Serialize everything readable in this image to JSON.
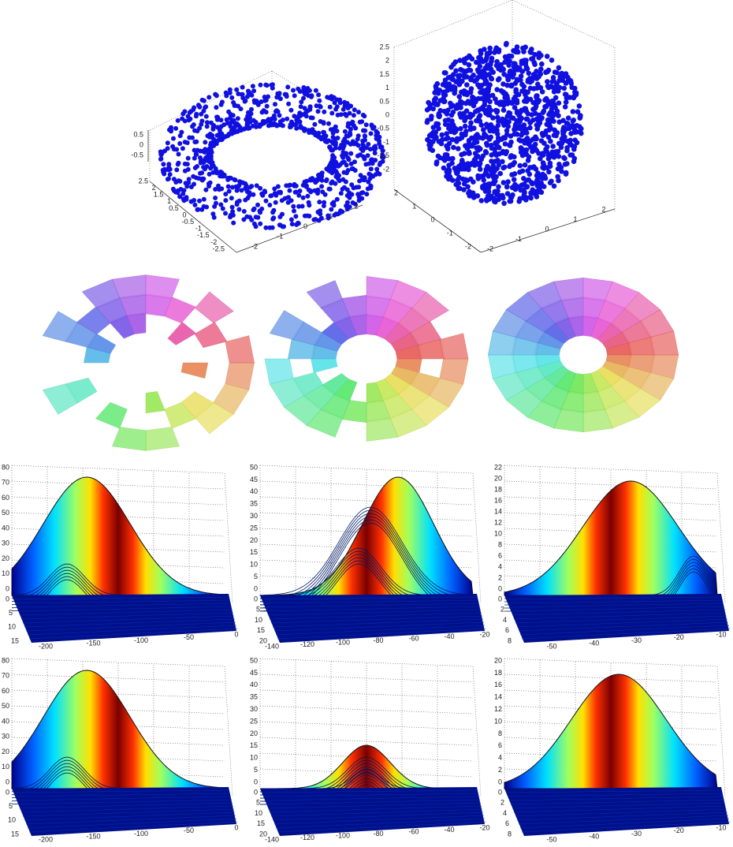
{
  "scatter_panels": [
    {
      "z_ticks": [
        0.5,
        0,
        -0.5
      ],
      "y_ticks": [
        2.5,
        2,
        1.5,
        1,
        0.5,
        0,
        -0.5,
        -1,
        -1.5,
        -2,
        -2.5
      ],
      "x_ticks": [
        -2,
        -1,
        0,
        1,
        2
      ]
    },
    {
      "z_ticks": [
        2.5,
        2,
        1.5,
        1,
        0.5,
        0,
        -0.5,
        -1,
        -1.5,
        -2
      ],
      "y_ticks": [
        2,
        1,
        0,
        -1,
        -2
      ],
      "x_ticks": [
        -2,
        -1,
        0,
        1,
        2
      ]
    }
  ],
  "surface_panels": [
    {
      "z_ticks": [
        0,
        10,
        20,
        30,
        40,
        50,
        60,
        70,
        80
      ],
      "depth_ticks": [
        0,
        5,
        10,
        15
      ],
      "x_ticks": [
        -200,
        -150,
        -100,
        -50,
        0
      ]
    },
    {
      "z_ticks": [
        0,
        5,
        10,
        15,
        20,
        25,
        30,
        35,
        40,
        45,
        50
      ],
      "depth_ticks": [
        0,
        5,
        10,
        15,
        20
      ],
      "x_ticks": [
        -140,
        -120,
        -100,
        -80,
        -60,
        -40,
        -20
      ]
    },
    {
      "z_ticks": [
        0,
        2,
        4,
        6,
        8,
        10,
        12,
        14,
        16,
        18,
        20,
        22
      ],
      "depth_ticks": [
        0,
        2,
        4,
        6,
        8
      ],
      "x_ticks": [
        -50,
        -40,
        -30,
        -20,
        -10
      ]
    },
    {
      "z_ticks": [
        0,
        10,
        20,
        30,
        40,
        50,
        60,
        70,
        80
      ],
      "depth_ticks": [
        0,
        5,
        10,
        15
      ],
      "x_ticks": [
        -200,
        -150,
        -100,
        -50,
        0
      ]
    },
    {
      "z_ticks": [
        0,
        5,
        10,
        15,
        20,
        25,
        30,
        35,
        40,
        45,
        50
      ],
      "depth_ticks": [
        0,
        5,
        10,
        15,
        20
      ],
      "x_ticks": [
        -140,
        -120,
        -100,
        -80,
        -60,
        -40,
        -20
      ]
    },
    {
      "z_ticks": [
        0,
        2,
        4,
        6,
        8,
        10,
        12,
        14,
        16,
        18,
        20
      ],
      "depth_ticks": [
        0,
        2,
        4,
        6,
        8
      ],
      "x_ticks": [
        -50,
        -40,
        -30,
        -20,
        -10
      ]
    }
  ]
}
